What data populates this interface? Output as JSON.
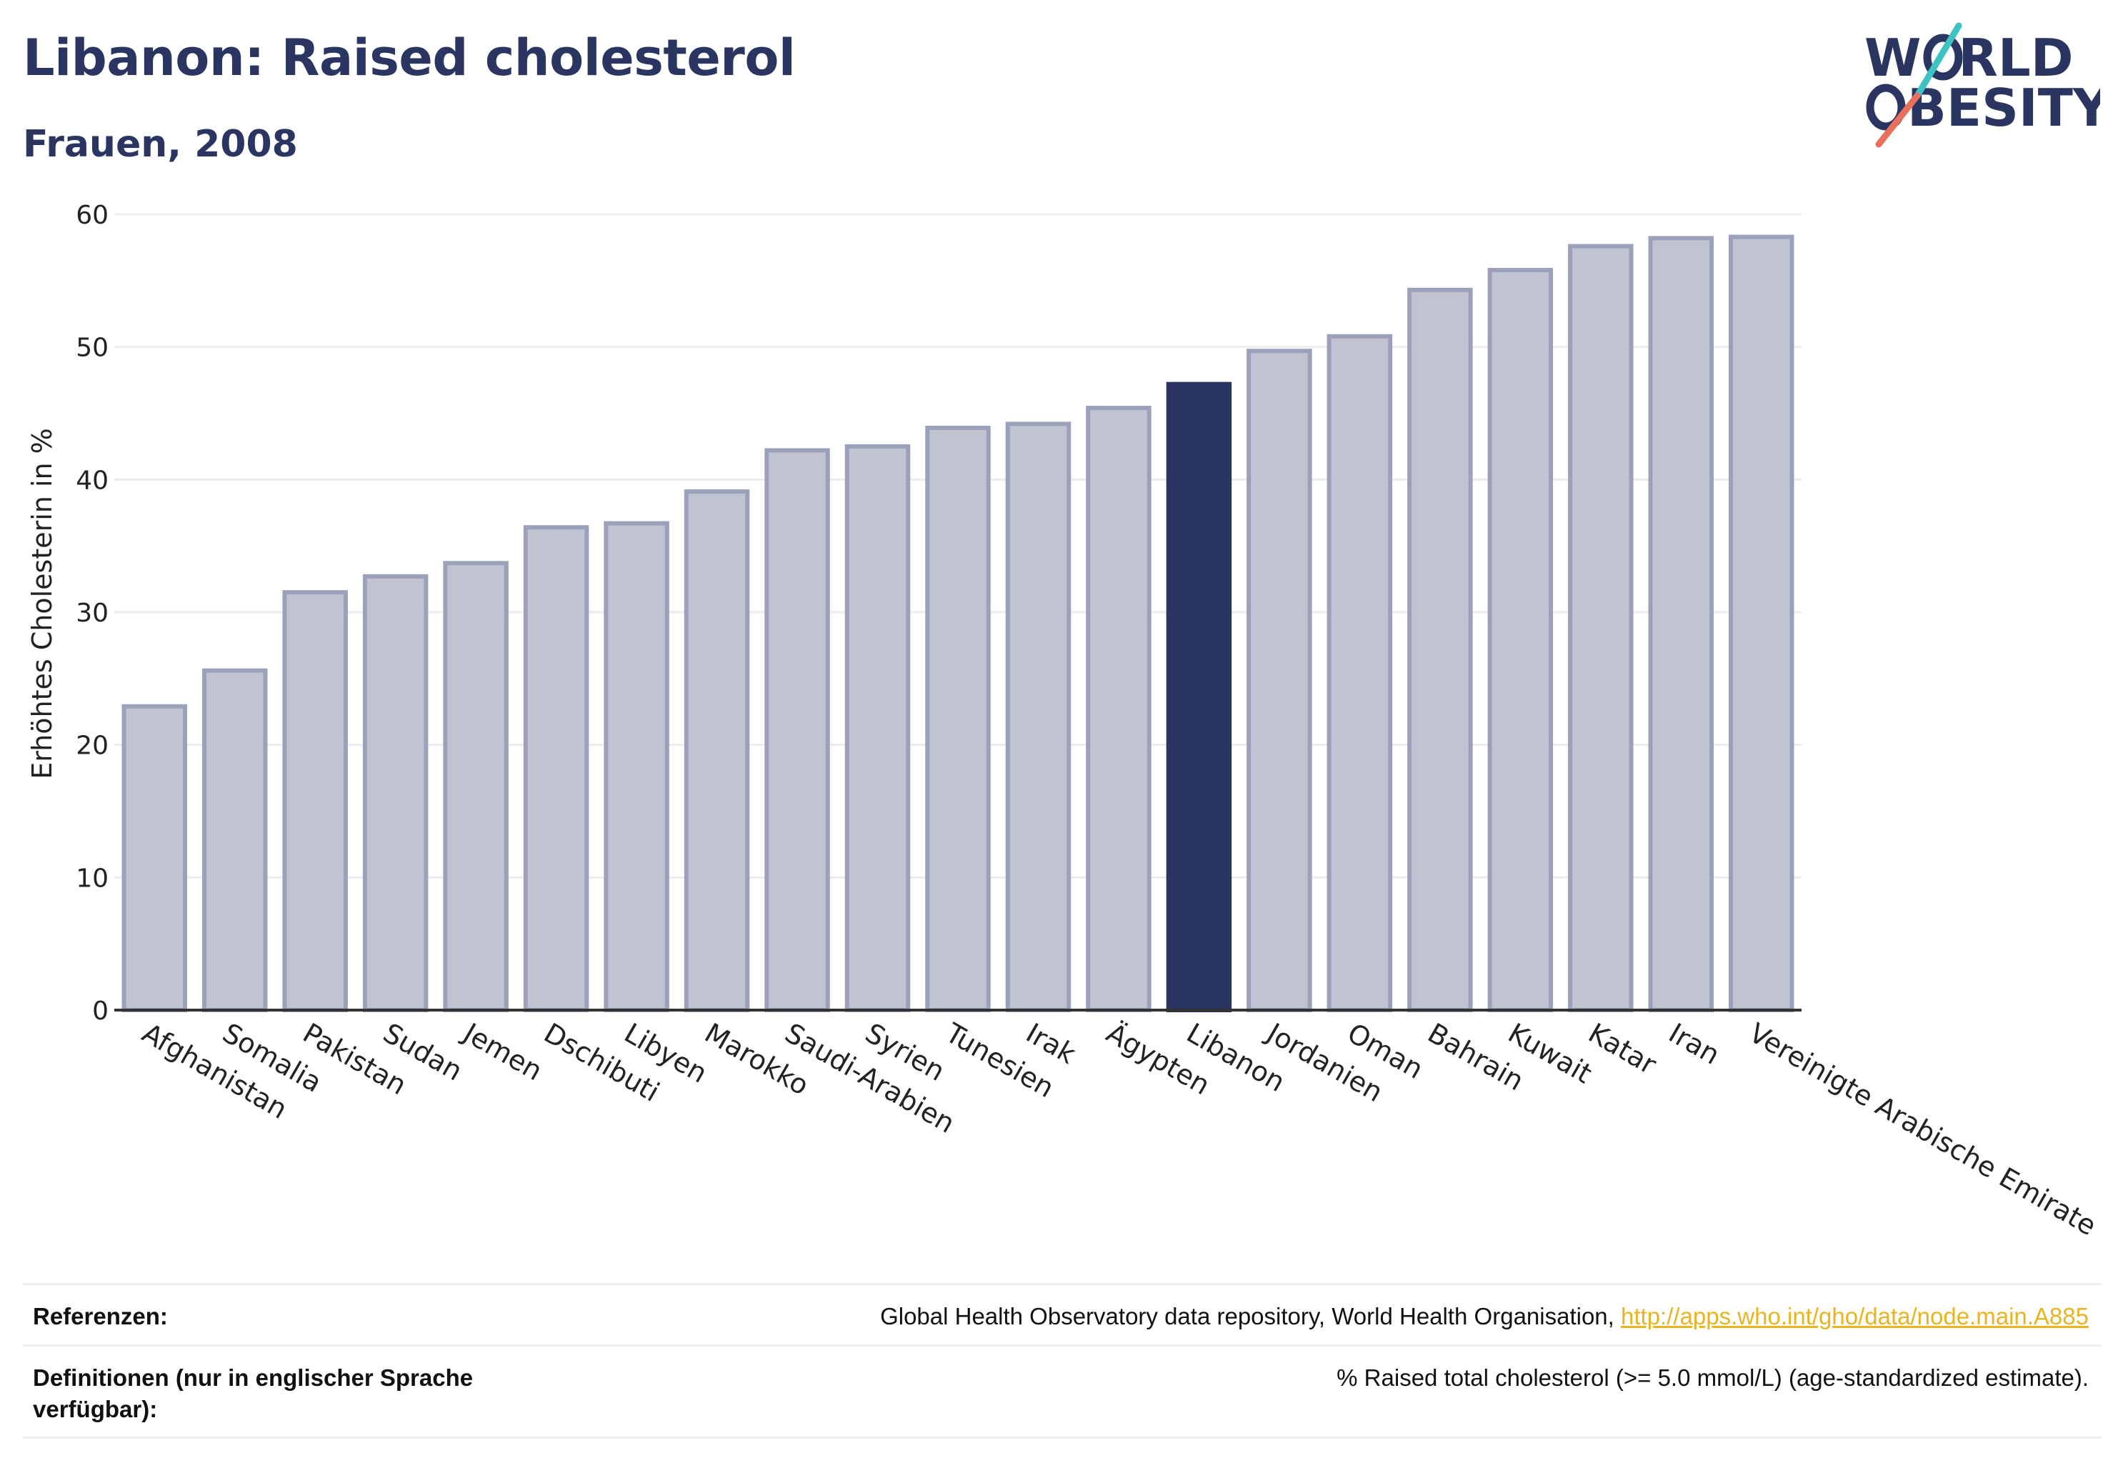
{
  "header": {
    "title": "Libanon: Raised cholesterol",
    "subtitle": "Frauen, 2008"
  },
  "logo": {
    "line1": "W",
    "line1b": "RLD",
    "line2b": "BESITY",
    "icon": "world-obesity-logo"
  },
  "colors": {
    "bar": "#c0c4d1",
    "bar_border": "#9ba1bb",
    "highlight": "#2a3561",
    "text": "#2a3561",
    "grid": "#ececf0",
    "logo_teal": "#3fc2c3",
    "logo_coral": "#e8705c",
    "link": "#e8b422"
  },
  "chart_data": {
    "type": "bar",
    "title": "Libanon: Raised cholesterol",
    "subtitle": "Frauen, 2008",
    "xlabel": "",
    "ylabel": "Erhöhtes Cholesterin in %",
    "ylim": [
      0,
      60
    ],
    "yticks": [
      0,
      10,
      20,
      30,
      40,
      50,
      60
    ],
    "grid": true,
    "highlight": "Libanon",
    "categories": [
      "Afghanistan",
      "Somalia",
      "Pakistan",
      "Sudan",
      "Jemen",
      "Dschibuti",
      "Libyen",
      "Marokko",
      "Saudi-Arabien",
      "Syrien",
      "Tunesien",
      "Irak",
      "Ägypten",
      "Libanon",
      "Jordanien",
      "Oman",
      "Bahrain",
      "Kuwait",
      "Katar",
      "Iran",
      "Vereinigte Arabische Emirate"
    ],
    "values": [
      22.9,
      25.6,
      31.5,
      32.7,
      33.7,
      36.4,
      36.7,
      39.1,
      42.2,
      42.5,
      43.9,
      44.2,
      45.4,
      47.2,
      49.7,
      50.8,
      54.3,
      55.8,
      57.6,
      58.2,
      58.3
    ]
  },
  "footer": {
    "references_label": "Referenzen:",
    "references_text": "Global Health Observatory data repository, World Health Organisation, ",
    "references_link": "http://apps.who.int/gho/data/node.main.A885",
    "definitions_label": "Definitionen (nur in englischer Sprache verfügbar):",
    "definitions_text": "% Raised total cholesterol (>= 5.0 mmol/L) (age-standardized estimate)."
  }
}
